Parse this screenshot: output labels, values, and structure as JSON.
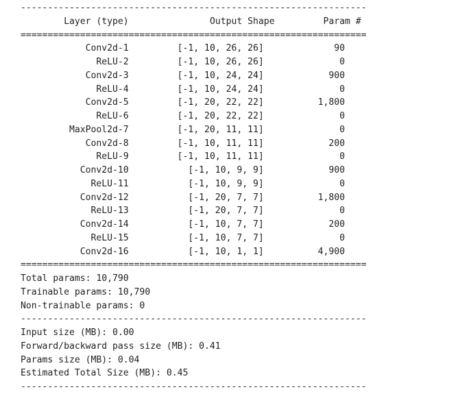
{
  "separator_dash": "----------------------------------------------------------------",
  "separator_equal": "================================================================",
  "header": {
    "layer": "Layer (type)",
    "output_shape": "Output Shape",
    "param": "Param #"
  },
  "layers": [
    {
      "name": "Conv2d-1",
      "shape": "[-1, 10, 26, 26]",
      "params": "90"
    },
    {
      "name": "ReLU-2",
      "shape": "[-1, 10, 26, 26]",
      "params": "0"
    },
    {
      "name": "Conv2d-3",
      "shape": "[-1, 10, 24, 24]",
      "params": "900"
    },
    {
      "name": "ReLU-4",
      "shape": "[-1, 10, 24, 24]",
      "params": "0"
    },
    {
      "name": "Conv2d-5",
      "shape": "[-1, 20, 22, 22]",
      "params": "1,800"
    },
    {
      "name": "ReLU-6",
      "shape": "[-1, 20, 22, 22]",
      "params": "0"
    },
    {
      "name": "MaxPool2d-7",
      "shape": "[-1, 20, 11, 11]",
      "params": "0"
    },
    {
      "name": "Conv2d-8",
      "shape": "[-1, 10, 11, 11]",
      "params": "200"
    },
    {
      "name": "ReLU-9",
      "shape": "[-1, 10, 11, 11]",
      "params": "0"
    },
    {
      "name": "Conv2d-10",
      "shape": "[-1, 10, 9, 9]",
      "params": "900"
    },
    {
      "name": "ReLU-11",
      "shape": "[-1, 10, 9, 9]",
      "params": "0"
    },
    {
      "name": "Conv2d-12",
      "shape": "[-1, 20, 7, 7]",
      "params": "1,800"
    },
    {
      "name": "ReLU-13",
      "shape": "[-1, 20, 7, 7]",
      "params": "0"
    },
    {
      "name": "Conv2d-14",
      "shape": "[-1, 10, 7, 7]",
      "params": "200"
    },
    {
      "name": "ReLU-15",
      "shape": "[-1, 10, 7, 7]",
      "params": "0"
    },
    {
      "name": "Conv2d-16",
      "shape": "[-1, 10, 1, 1]",
      "params": "4,900"
    }
  ],
  "param_totals": {
    "total": "Total params: 10,790",
    "trainable": "Trainable params: 10,790",
    "non_trainable": "Non-trainable params: 0"
  },
  "size_estimates": {
    "input": "Input size (MB): 0.00",
    "forward_backward": "Forward/backward pass size (MB): 0.41",
    "params": "Params size (MB): 0.04",
    "total": "Estimated Total Size (MB): 0.45"
  }
}
